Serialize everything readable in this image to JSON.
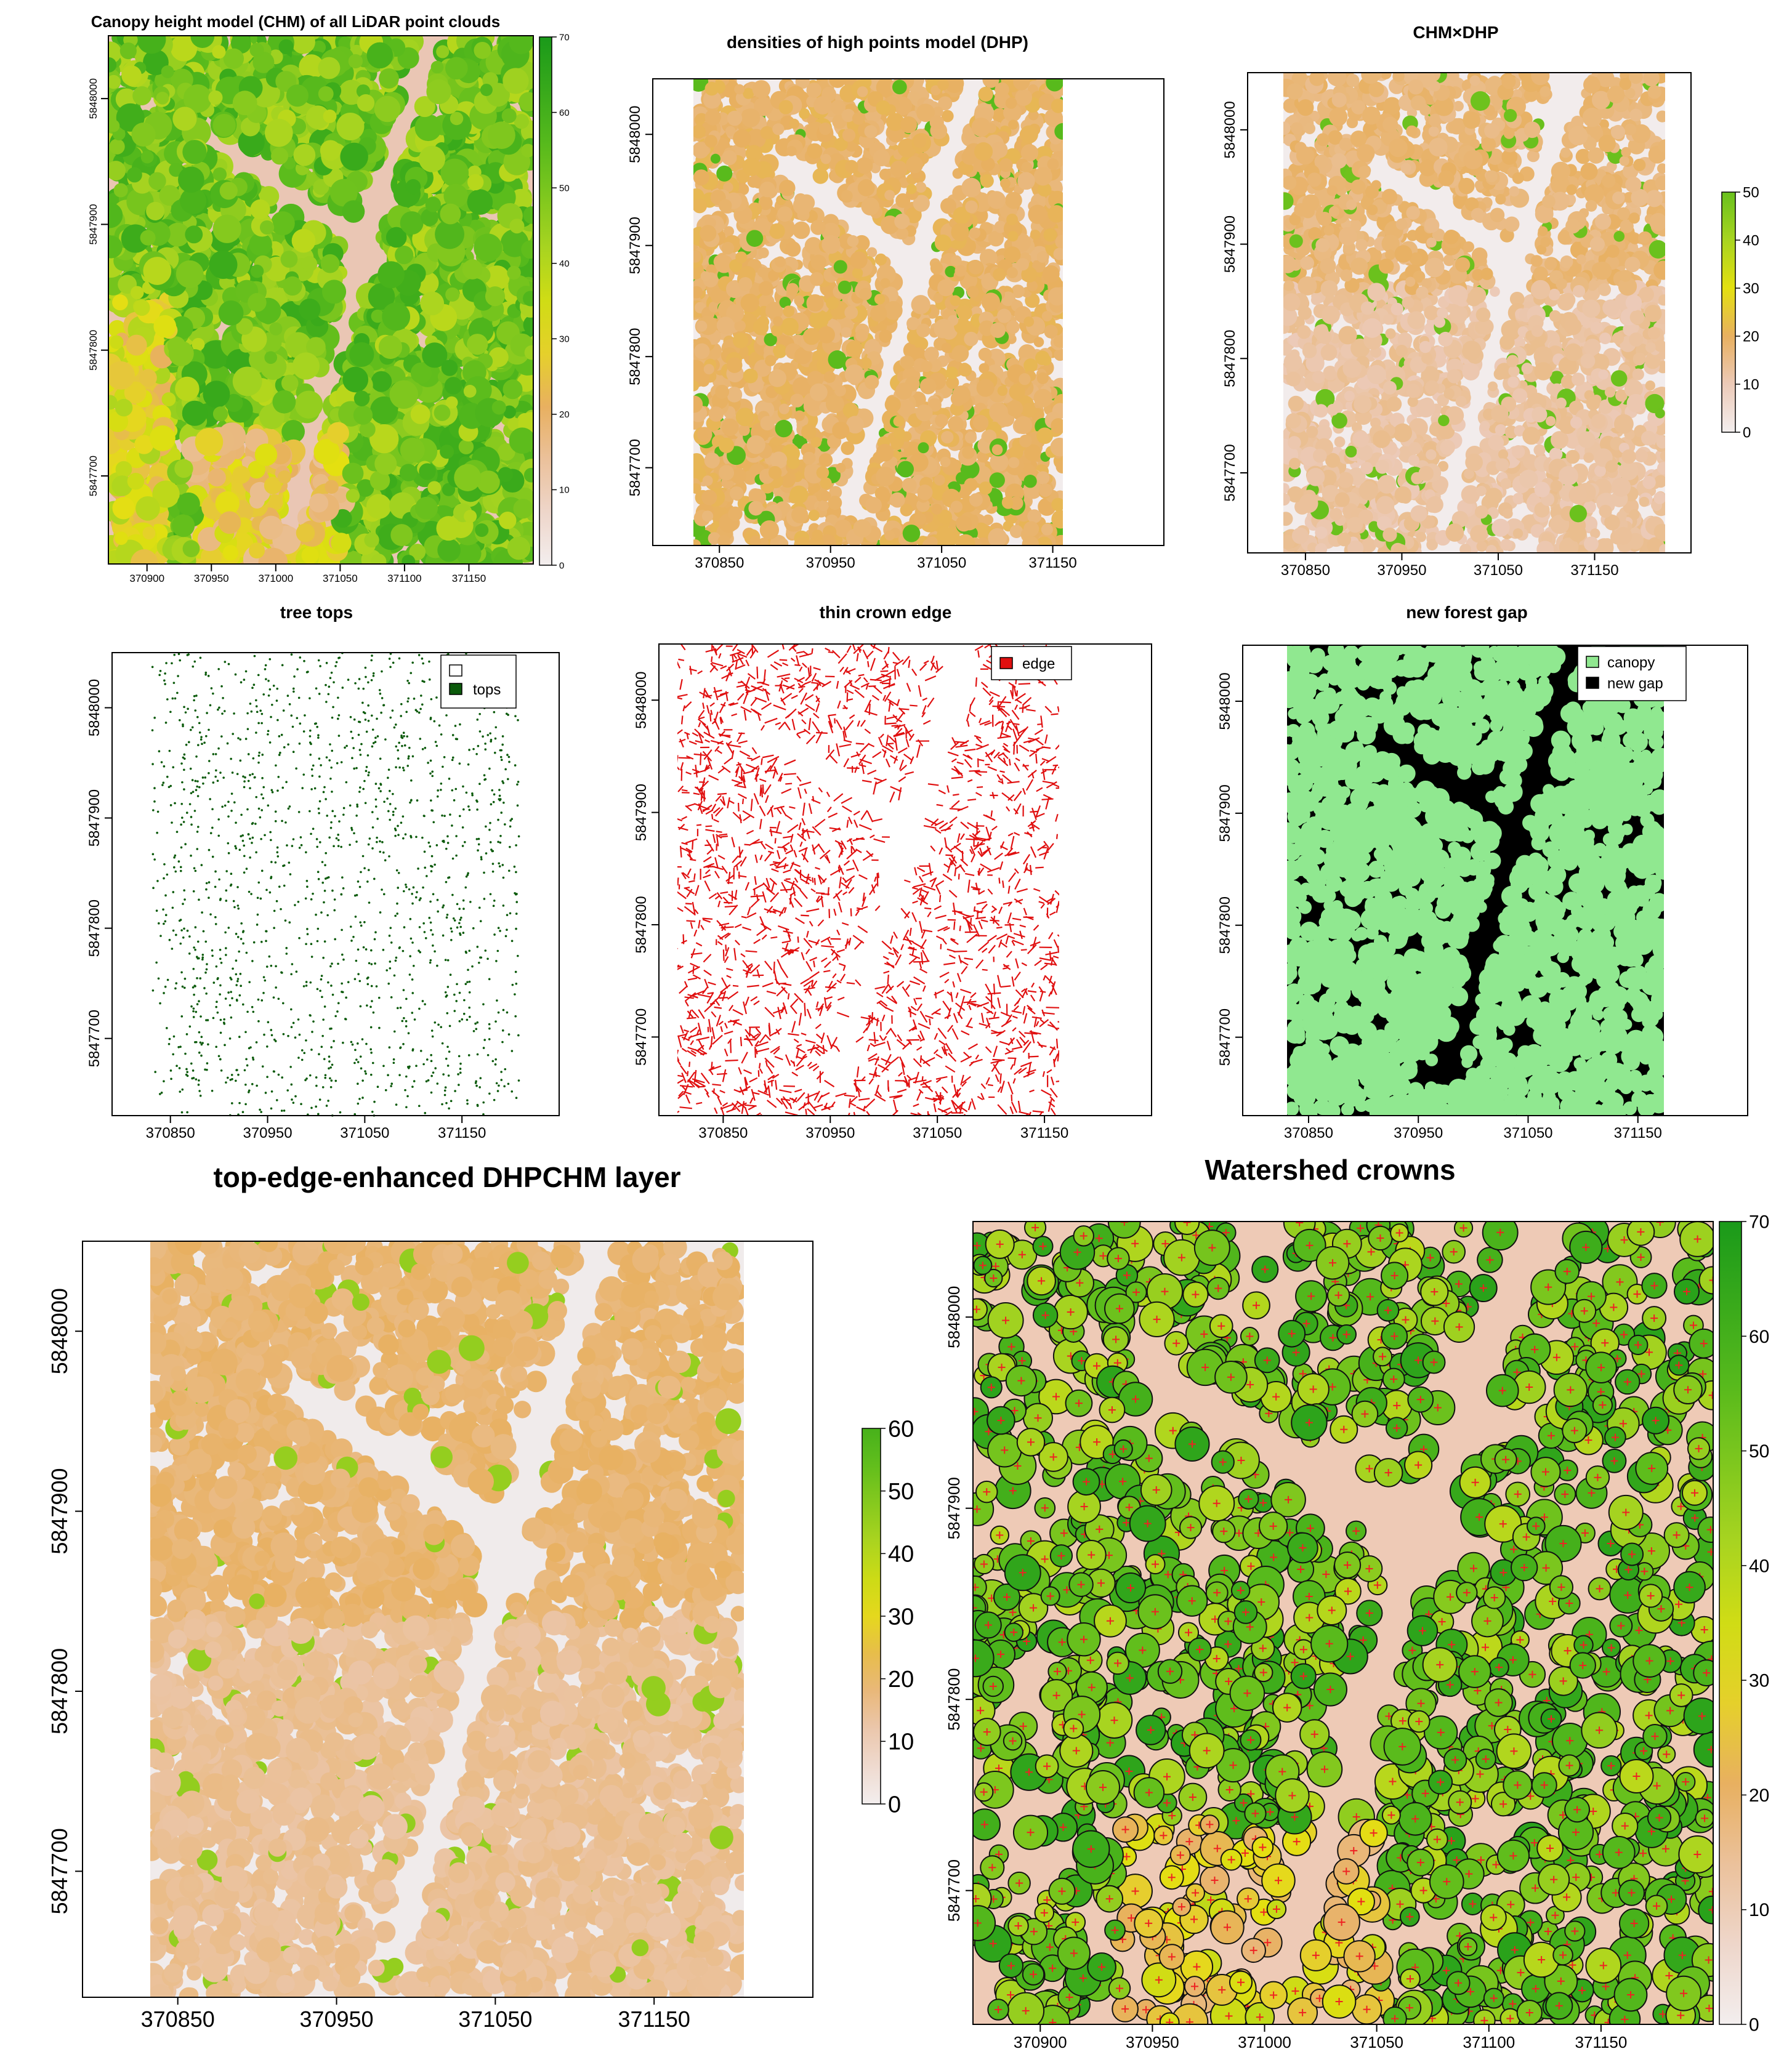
{
  "chart_data": [
    {
      "id": "p1",
      "type": "heatmap",
      "title": "Canopy height model (CHM) of all LiDAR point clouds",
      "x_ticks": [
        "370900",
        "370950",
        "371000",
        "371050",
        "371100",
        "371150"
      ],
      "y_ticks": [
        "5848000",
        "5847900",
        "5847800",
        "5847700"
      ],
      "colorbar_ticks": [
        "0",
        "10",
        "20",
        "30",
        "40",
        "50",
        "60",
        "70"
      ],
      "palette": "terrain (green-yellow-orange-pink-white)"
    },
    {
      "id": "p2",
      "type": "heatmap",
      "title": "densities of high points model (DHP)",
      "x_ticks": [
        "370850",
        "370950",
        "371050",
        "371150"
      ],
      "y_ticks": [
        "5848000",
        "5847900",
        "5847800",
        "5847700"
      ]
    },
    {
      "id": "p3",
      "type": "heatmap",
      "title": "CHM×DHP",
      "x_ticks": [
        "370850",
        "370950",
        "371050",
        "371150"
      ],
      "y_ticks": [
        "5848000",
        "5847900",
        "5847800",
        "5847700"
      ],
      "colorbar_ticks": [
        "0",
        "10",
        "20",
        "30",
        "40",
        "50"
      ]
    },
    {
      "id": "p4",
      "type": "scatter",
      "title": "tree tops",
      "x_ticks": [
        "370850",
        "370950",
        "371050",
        "371150"
      ],
      "y_ticks": [
        "5848000",
        "5847900",
        "5847800",
        "5847700"
      ],
      "legend": [
        {
          "label": "",
          "color": "#ffffff"
        },
        {
          "label": "tops",
          "color": "#0b5a0b"
        }
      ]
    },
    {
      "id": "p5",
      "type": "heatmap",
      "title": "thin crown edge",
      "x_ticks": [
        "370850",
        "370950",
        "371050",
        "371150"
      ],
      "y_ticks": [
        "5848000",
        "5847900",
        "5847800",
        "5847700"
      ],
      "legend": [
        {
          "label": "edge",
          "color": "#e01010"
        }
      ]
    },
    {
      "id": "p6",
      "type": "heatmap",
      "title": "new forest gap",
      "x_ticks": [
        "370850",
        "370950",
        "371050",
        "371150"
      ],
      "y_ticks": [
        "5848000",
        "5847900",
        "5847800",
        "5847700"
      ],
      "legend": [
        {
          "label": "canopy",
          "color": "#90e890"
        },
        {
          "label": "new gap",
          "color": "#000000"
        }
      ]
    },
    {
      "id": "p7",
      "type": "heatmap",
      "title": "top-edge-enhanced DHPCHM layer",
      "x_ticks": [
        "370850",
        "370950",
        "371050",
        "371150"
      ],
      "y_ticks": [
        "5848000",
        "5847900",
        "5847800",
        "5847700"
      ],
      "colorbar_ticks": [
        "0",
        "10",
        "20",
        "30",
        "40",
        "50",
        "60"
      ]
    },
    {
      "id": "p8",
      "type": "heatmap",
      "title": "Watershed crowns",
      "x_ticks": [
        "370900",
        "370950",
        "371000",
        "371050",
        "371100",
        "371150"
      ],
      "y_ticks": [
        "5848000",
        "5847900",
        "5847800",
        "5847700"
      ],
      "colorbar_ticks": [
        "0",
        "10",
        "20",
        "30",
        "40",
        "50",
        "60",
        "70"
      ]
    }
  ],
  "colors": {
    "green_dark": "#1a9a1a",
    "green": "#5cbc1c",
    "yellow": "#e4e010",
    "orange": "#e8b050",
    "pink": "#eab8a0",
    "white": "#f4f0f0",
    "edge_red": "#dd1111",
    "canopy_green": "#90e890",
    "gap_black": "#000000",
    "crown_outline": "#111111",
    "top_marker": "#ee2222"
  }
}
